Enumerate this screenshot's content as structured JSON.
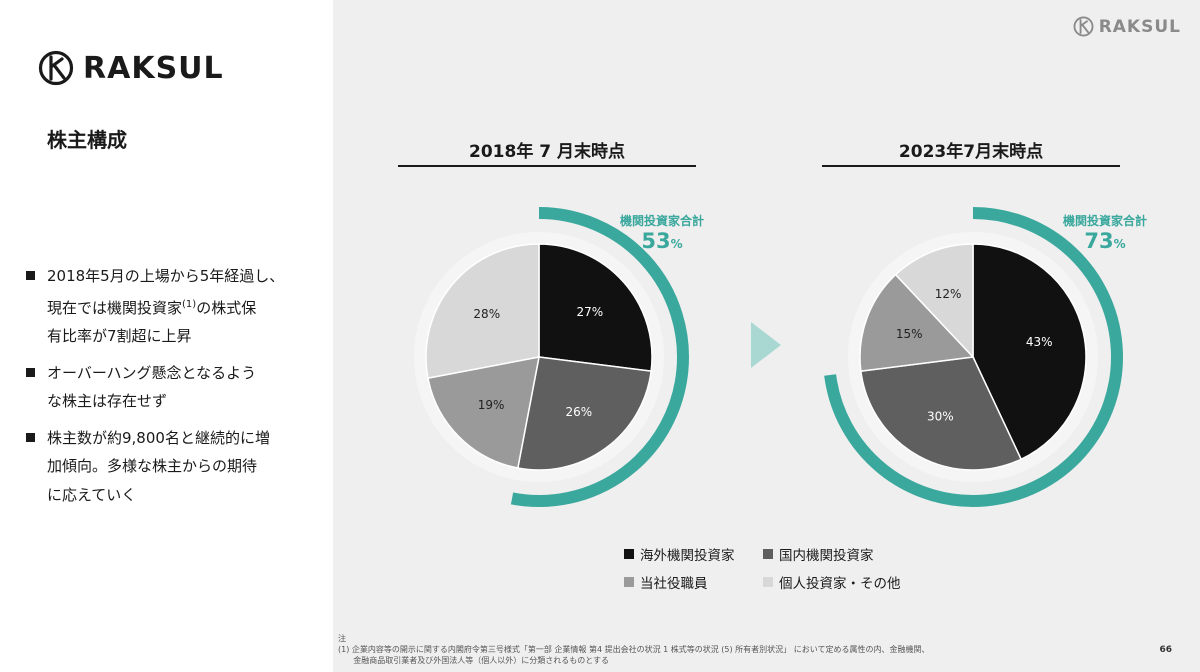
{
  "logo": {
    "text": "RAKSUL"
  },
  "header_logo": {
    "text": "RAKSUL"
  },
  "title": "株主構成",
  "bullets": [
    {
      "lines": [
        "2018年5月の上場から5年経過し、",
        "現在では機関投資家",
        "の株式保",
        "有比率が7割超に上昇"
      ],
      "sup": "(1)"
    },
    {
      "lines": [
        "オーバーハング懸念となるよう",
        "な株主は存在せず"
      ]
    },
    {
      "lines": [
        "株主数が約9,800名と継続的に増",
        "加傾向。多様な株主からの期待",
        "に応えていく"
      ]
    }
  ],
  "colors": {
    "accent": "#3aa89d",
    "series": [
      "#111111",
      "#5f5f5f",
      "#9a9a9a",
      "#d8d8d8"
    ]
  },
  "chart_data": [
    {
      "type": "pie",
      "title": "2018年 7 月末時点",
      "categories": [
        "海外機関投資家",
        "国内機関投資家",
        "当社役職員",
        "個人投資家・その他"
      ],
      "values": [
        27,
        26,
        19,
        28
      ],
      "labels": [
        "27%",
        "26%",
        "19%",
        "28%"
      ],
      "highlight": {
        "label": "機関投資家合計",
        "value": "53",
        "unit": "%"
      }
    },
    {
      "type": "pie",
      "title": "2023年7月末時点",
      "categories": [
        "海外機関投資家",
        "国内機関投資家",
        "当社役職員",
        "個人投資家・その他"
      ],
      "values": [
        43,
        30,
        15,
        12
      ],
      "labels": [
        "43%",
        "30%",
        "15%",
        "12%"
      ],
      "highlight": {
        "label": "機関投資家合計",
        "value": "73",
        "unit": "%"
      }
    }
  ],
  "legend": [
    "海外機関投資家",
    "国内機関投資家",
    "当社役職員",
    "個人投資家・その他"
  ],
  "notes": [
    "注",
    "(1) 企業内容等の開示に関する内閣府令第三号様式「第一部 企業情報 第4 提出会社の状況 1 株式等の状況 (5) 所有者別状況」 において定める属性の内、金融機関、",
    "      金融商品取引業者及び外国法人等（個人以外）に分類されるものとする"
  ],
  "page_number": "66"
}
